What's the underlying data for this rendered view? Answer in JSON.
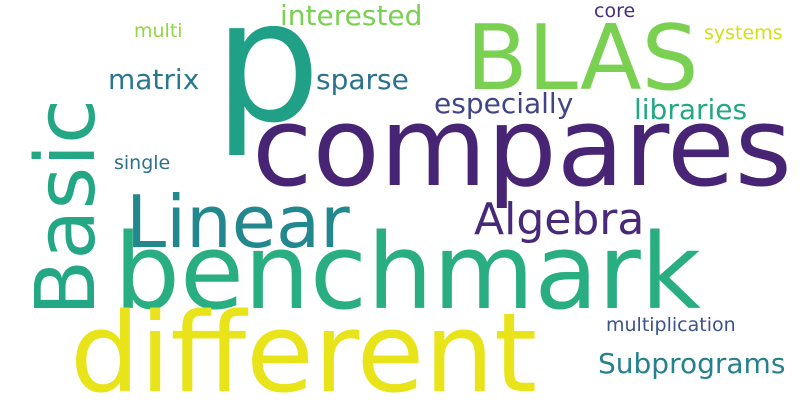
{
  "words": {
    "p": {
      "text": "p",
      "color": "#21a088"
    },
    "compares": {
      "text": "compares",
      "color": "#482475"
    },
    "benchmark": {
      "text": "benchmark",
      "color": "#28ae80"
    },
    "different": {
      "text": "different",
      "color": "#e8e419"
    },
    "blas": {
      "text": "BLAS",
      "color": "#7ad151"
    },
    "linear": {
      "text": "Linear",
      "color": "#23888e"
    },
    "algebra": {
      "text": "Algebra",
      "color": "#482878"
    },
    "basic": {
      "text": "Basic",
      "color": "#24a784"
    },
    "subprograms": {
      "text": "Subprograms",
      "color": "#26818e"
    },
    "libraries": {
      "text": "libraries",
      "color": "#22a884"
    },
    "especially": {
      "text": "especially",
      "color": "#414487"
    },
    "interested": {
      "text": "interested",
      "color": "#7ad151"
    },
    "matrix": {
      "text": "matrix",
      "color": "#2a788e"
    },
    "sparse": {
      "text": "sparse",
      "color": "#2c728e"
    },
    "multi": {
      "text": "multi",
      "color": "#8fd744"
    },
    "single": {
      "text": "single",
      "color": "#2c718e"
    },
    "core": {
      "text": "core",
      "color": "#472d7b"
    },
    "systems": {
      "text": "systems",
      "color": "#d0e11c"
    },
    "multiplication": {
      "text": "multiplication",
      "color": "#3b528b"
    }
  }
}
